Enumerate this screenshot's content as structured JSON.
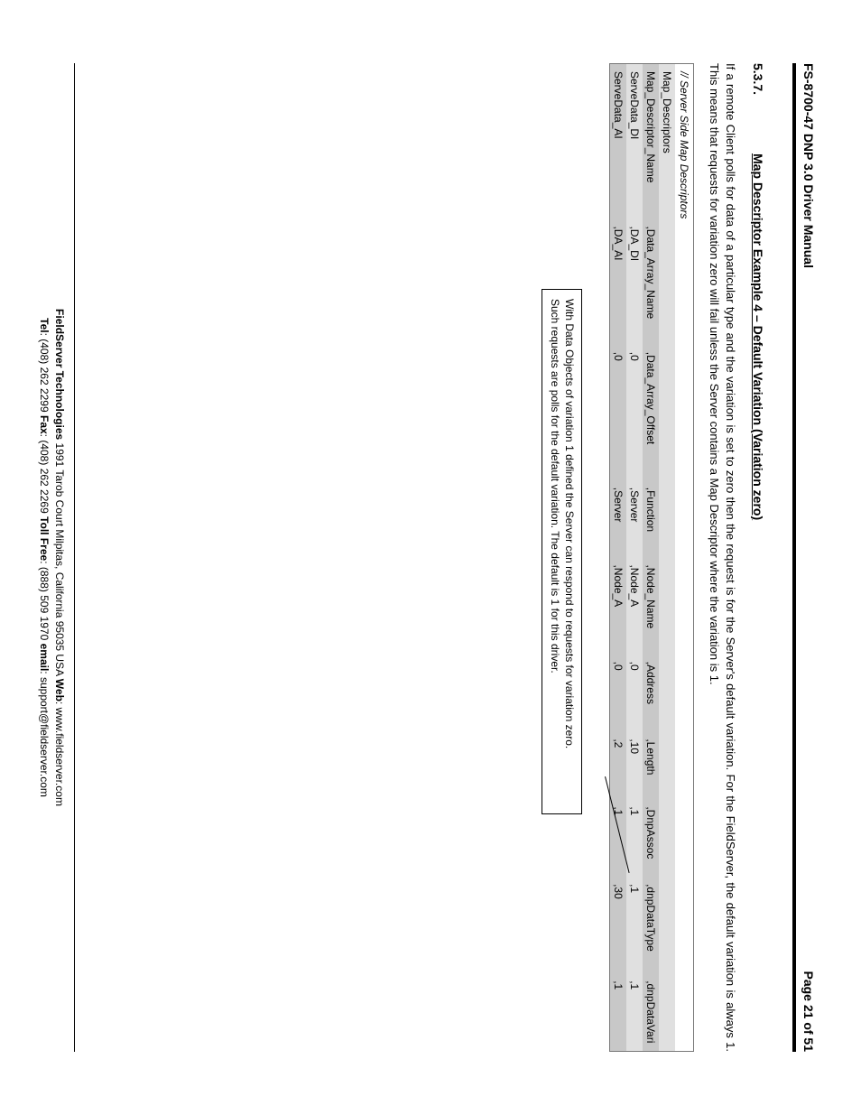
{
  "header": {
    "left": "FS-8700-47 DNP 3.0 Driver Manual",
    "right": "Page 21 of 51"
  },
  "section": {
    "number": "5.3.7.",
    "title": "Map Descriptor Example 4 – Default Variation (Variation zero)"
  },
  "paragraph": "If a remote Client polls for data of a particular type and the variation is set to zero then the request is for the Server's default variation.  For the FieldServer, the default variation is always 1.  This means that requests for variation zero will fail unless the Server contains a Map Descriptor where the variation is 1.",
  "table": {
    "title": "//   Server Side Map Descriptors",
    "rows": [
      [
        "Map_Descriptors",
        "",
        "",
        "",
        "",
        "",
        "",
        "",
        "",
        ""
      ],
      [
        "Map_Descriptor_Name",
        ",Data_Array_Name",
        ",Data_Array_Offset",
        ",Function",
        ",Node_Name",
        ",Address",
        ",Length",
        ",DnpAssoc",
        ",dnpDataType",
        ",dnpDataVari"
      ],
      [
        "ServeData_DI",
        ",DA_DI",
        ",0",
        ",Server",
        ",Node_A",
        ",0",
        ",10",
        ",1",
        ",1",
        ",1"
      ],
      [
        "ServeData_AI",
        ",DA_AI",
        ",0",
        ",Server",
        ",Node_A",
        ",0",
        ",2",
        ",1",
        ",30",
        ",1"
      ]
    ],
    "col_widths": [
      "16%",
      "13%",
      "14%",
      "8%",
      "10%",
      "8%",
      "7%",
      "8%",
      "10%",
      "8%"
    ]
  },
  "callout": {
    "line1": "With Data Objects of variation 1 defined the Server can respond to requests for variation zero.",
    "line2": "Such requests are polls for the default variation. The default is 1 for this driver."
  },
  "footer": {
    "l1_a": "FieldServer Technologies",
    "l1_b": " 1991 Tarob Court Milpitas, California 95035 USA   ",
    "l1_c": "Web",
    "l1_d": ": www.fieldserver.com",
    "l2_a": "Tel",
    "l2_b": ": (408) 262 2299   ",
    "l2_c": "Fax",
    "l2_d": ": (408) 262 2269   ",
    "l2_e": "Toll Free",
    "l2_f": ": (888) 509 1970   ",
    "l2_g": "email",
    "l2_h": ": support@fieldserver.com"
  }
}
